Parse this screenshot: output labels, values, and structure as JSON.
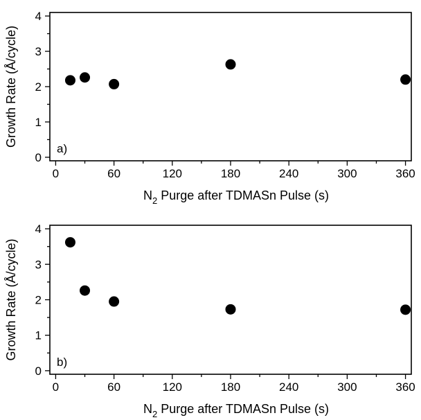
{
  "chart_data": [
    {
      "type": "scatter",
      "panel_label": "a)",
      "xlabel_main": "N",
      "xlabel_sub": "2",
      "xlabel_rest": " Purge  after TDMASn Pulse (s)",
      "ylabel": "Growth Rate (Å/cycle)",
      "xlim": [
        -6,
        366
      ],
      "ylim": [
        -0.1,
        4.1
      ],
      "xticks": [
        0,
        60,
        120,
        180,
        240,
        300,
        360
      ],
      "yticks": [
        0,
        1,
        2,
        3,
        4
      ],
      "grid": false,
      "points": [
        {
          "x": 15,
          "y": 2.18
        },
        {
          "x": 30,
          "y": 2.26
        },
        {
          "x": 60,
          "y": 2.07
        },
        {
          "x": 180,
          "y": 2.63
        },
        {
          "x": 360,
          "y": 2.2
        }
      ]
    },
    {
      "type": "scatter",
      "panel_label": "b)",
      "xlabel_main": "N",
      "xlabel_sub": "2",
      "xlabel_rest": " Purge  after TDMASn Pulse (s)",
      "ylabel": "Growth Rate (Å/cycle)",
      "xlim": [
        -6,
        366
      ],
      "ylim": [
        -0.1,
        4.1
      ],
      "xticks": [
        0,
        60,
        120,
        180,
        240,
        300,
        360
      ],
      "yticks": [
        0,
        1,
        2,
        3,
        4
      ],
      "grid": false,
      "points": [
        {
          "x": 15,
          "y": 3.62
        },
        {
          "x": 30,
          "y": 2.26
        },
        {
          "x": 60,
          "y": 1.95
        },
        {
          "x": 180,
          "y": 1.73
        },
        {
          "x": 360,
          "y": 1.72
        }
      ]
    }
  ]
}
